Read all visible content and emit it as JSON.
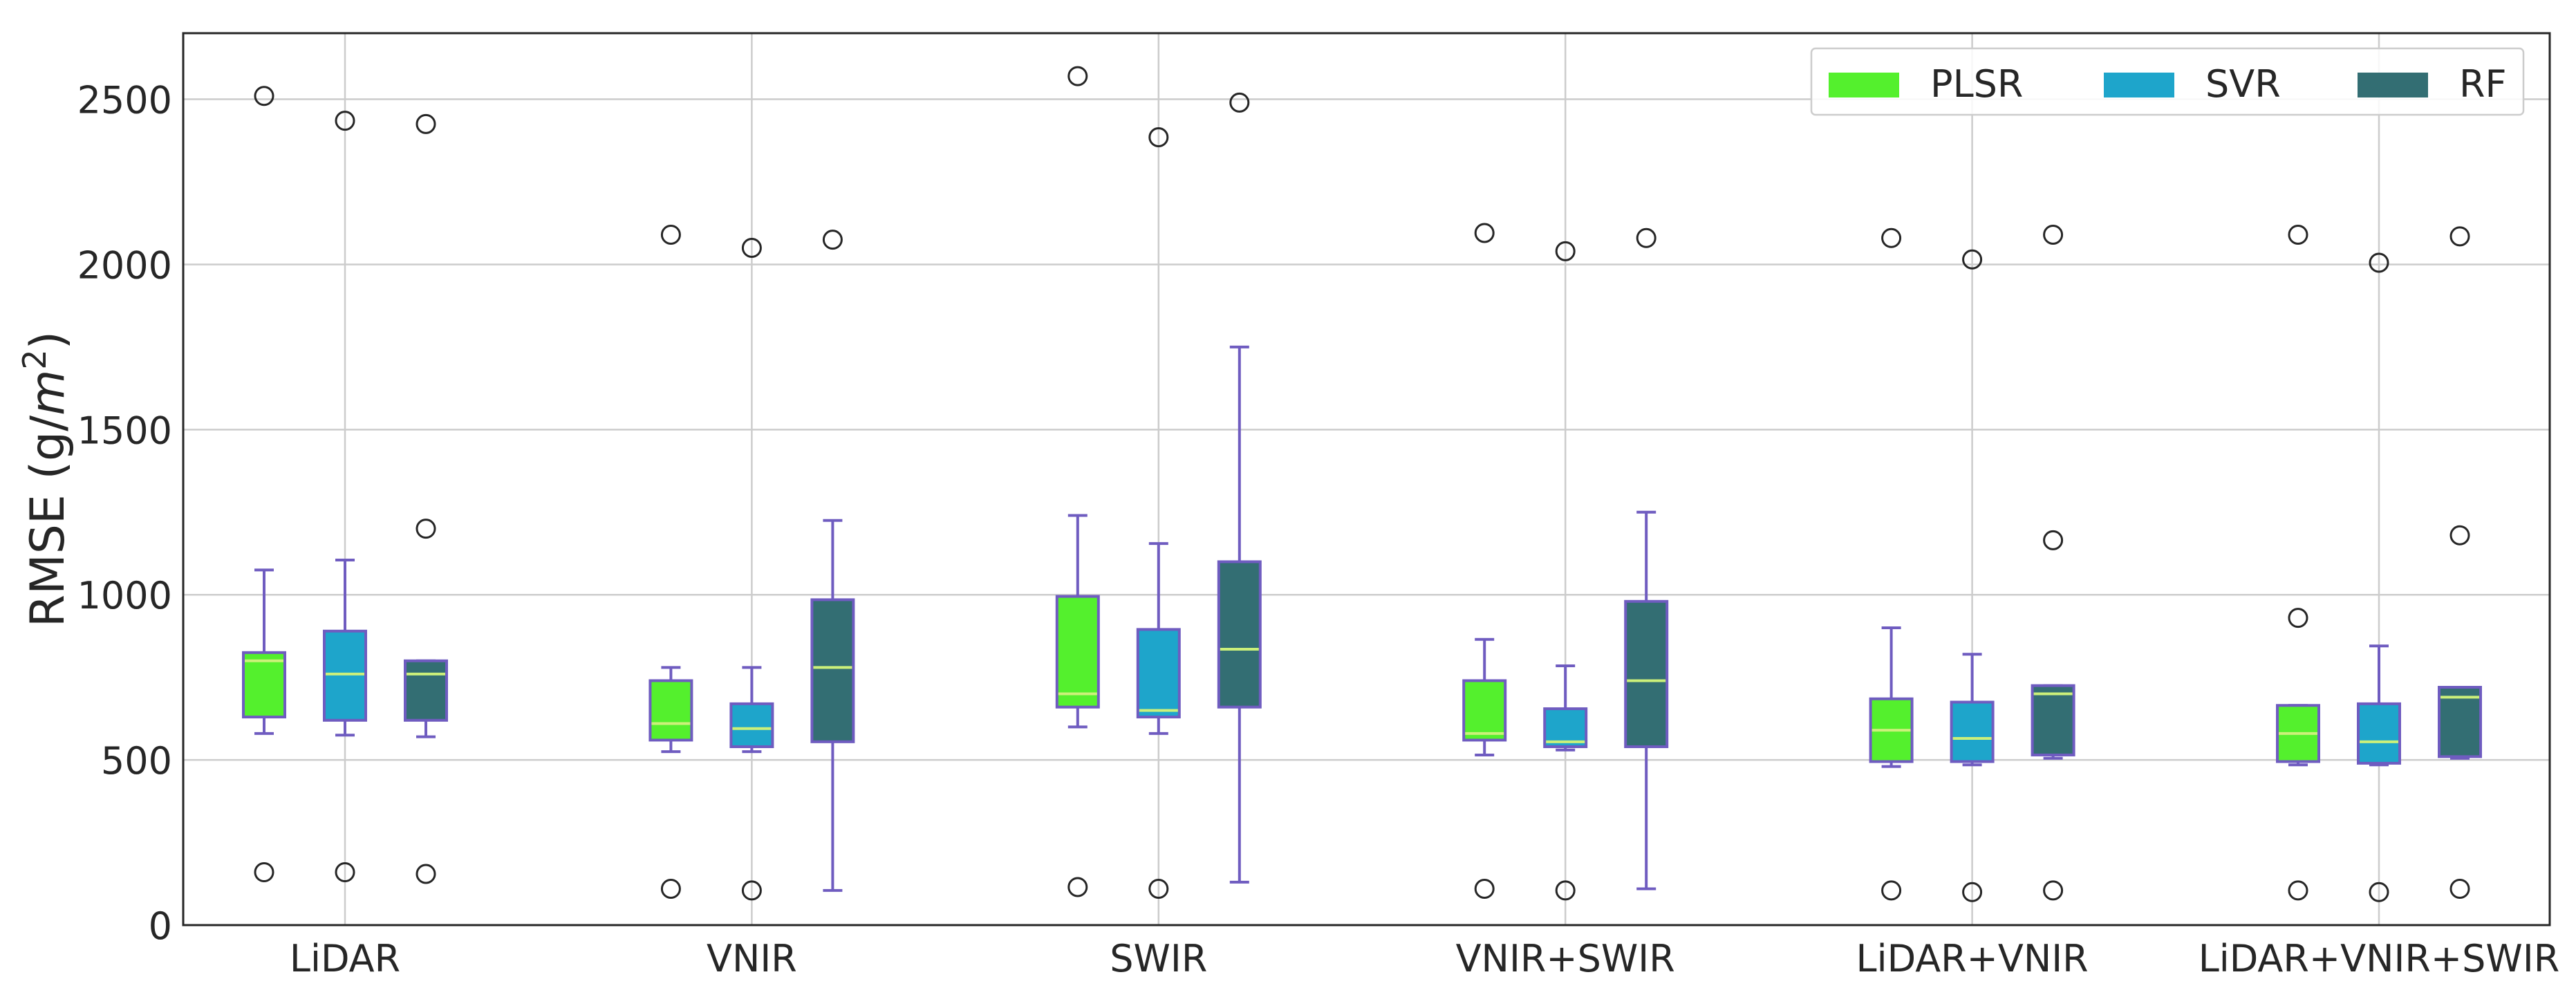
{
  "chart_data": {
    "type": "boxplot",
    "title": "",
    "xlabel": "",
    "ylabel": "RMSE (g/m²)",
    "ylabel_parts": {
      "prefix": "RMSE (g/",
      "base": "m",
      "sup": "2",
      "suffix": ")"
    },
    "ylim": [
      0,
      2700
    ],
    "yticks": [
      0,
      500,
      1000,
      1500,
      2000,
      2500
    ],
    "grid": true,
    "legend_position": "top-right",
    "categories": [
      "LiDAR",
      "VNIR",
      "SWIR",
      "VNIR+SWIR",
      "LiDAR+VNIR",
      "LiDAR+VNIR+SWIR"
    ],
    "series": [
      {
        "name": "PLSR",
        "color": "#54f02d",
        "boxes": [
          {
            "whislo": 580,
            "q1": 630,
            "med": 800,
            "q3": 825,
            "whishi": 1075,
            "fliers": [
              160,
              2510
            ]
          },
          {
            "whislo": 525,
            "q1": 560,
            "med": 610,
            "q3": 740,
            "whishi": 780,
            "fliers": [
              110,
              2090
            ]
          },
          {
            "whislo": 600,
            "q1": 660,
            "med": 700,
            "q3": 995,
            "whishi": 1240,
            "fliers": [
              115,
              2570
            ]
          },
          {
            "whislo": 515,
            "q1": 560,
            "med": 580,
            "q3": 740,
            "whishi": 865,
            "fliers": [
              110,
              2095
            ]
          },
          {
            "whislo": 480,
            "q1": 495,
            "med": 590,
            "q3": 685,
            "whishi": 900,
            "fliers": [
              105,
              2080
            ]
          },
          {
            "whislo": 485,
            "q1": 495,
            "med": 580,
            "q3": 665,
            "whishi": 665,
            "fliers": [
              105,
              930,
              2090
            ]
          }
        ]
      },
      {
        "name": "SVR",
        "color": "#1ea5cb",
        "boxes": [
          {
            "whislo": 575,
            "q1": 620,
            "med": 760,
            "q3": 890,
            "whishi": 1105,
            "fliers": [
              160,
              2435
            ]
          },
          {
            "whislo": 525,
            "q1": 540,
            "med": 595,
            "q3": 670,
            "whishi": 780,
            "fliers": [
              105,
              2050
            ]
          },
          {
            "whislo": 580,
            "q1": 630,
            "med": 650,
            "q3": 895,
            "whishi": 1155,
            "fliers": [
              110,
              2385
            ]
          },
          {
            "whislo": 530,
            "q1": 540,
            "med": 555,
            "q3": 655,
            "whishi": 785,
            "fliers": [
              105,
              2040
            ]
          },
          {
            "whislo": 485,
            "q1": 495,
            "med": 565,
            "q3": 675,
            "whishi": 820,
            "fliers": [
              100,
              2015
            ]
          },
          {
            "whislo": 485,
            "q1": 490,
            "med": 555,
            "q3": 670,
            "whishi": 845,
            "fliers": [
              100,
              2005
            ]
          }
        ]
      },
      {
        "name": "RF",
        "color": "#336e73",
        "boxes": [
          {
            "whislo": 570,
            "q1": 620,
            "med": 760,
            "q3": 800,
            "whishi": 800,
            "fliers": [
              155,
              1200,
              2425
            ]
          },
          {
            "whislo": 105,
            "q1": 555,
            "med": 780,
            "q3": 985,
            "whishi": 1225,
            "fliers": [
              2075
            ]
          },
          {
            "whislo": 130,
            "q1": 660,
            "med": 835,
            "q3": 1100,
            "whishi": 1750,
            "fliers": [
              2490
            ]
          },
          {
            "whislo": 110,
            "q1": 540,
            "med": 740,
            "q3": 980,
            "whishi": 1250,
            "fliers": [
              2080
            ]
          },
          {
            "whislo": 505,
            "q1": 515,
            "med": 700,
            "q3": 725,
            "whishi": 725,
            "fliers": [
              105,
              1165,
              2090
            ]
          },
          {
            "whislo": 505,
            "q1": 510,
            "med": 690,
            "q3": 720,
            "whishi": 720,
            "fliers": [
              110,
              1180,
              2085
            ]
          }
        ]
      }
    ],
    "style": {
      "box_edge_color": "#6f5cc0",
      "whisker_color": "#6f5cc0",
      "median_color": "#ccf07a",
      "grid_color": "#cccccc",
      "flier_color": "#262626",
      "axis_color": "#262626"
    }
  }
}
